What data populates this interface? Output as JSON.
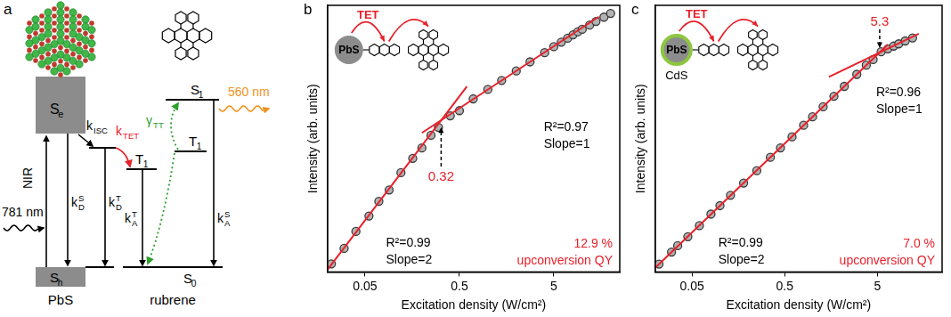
{
  "diagram": {
    "panel_label": "a",
    "nanocrystal": "PbS",
    "molecule": "rubrene",
    "excitation": "NIR",
    "excitation_wavelength": "781 nm",
    "emission_wavelength": "560 nm",
    "levels": {
      "pbs_excited": {
        "base": "S",
        "sub": "e"
      },
      "pbs_ground": {
        "base": "S",
        "sub": "h"
      },
      "rubrene_singlet": {
        "base": "S",
        "sub": "1"
      },
      "rubrene_triplet": {
        "base": "T",
        "sub": "1"
      },
      "rubrene_ground": {
        "base": "S",
        "sub": "0"
      }
    },
    "rates": {
      "isc": {
        "base": "k",
        "sub": "ISC"
      },
      "tet": {
        "base": "k",
        "sub": "TET"
      },
      "pbs_singlet_decay": {
        "base": "k",
        "sub": "D",
        "sup": "S"
      },
      "pbs_triplet_decay": {
        "base": "k",
        "sub": "D",
        "sup": "T"
      },
      "rubrene_triplet_decay": {
        "base": "k",
        "sub": "A",
        "sup": "T"
      },
      "rubrene_singlet_decay": {
        "base": "k",
        "sub": "A",
        "sup": "S"
      },
      "tta": {
        "base": "γ",
        "sub": "TT"
      }
    }
  },
  "chart_data": [
    {
      "panel_label": "b",
      "type": "scatter",
      "x_label": "Excitation density (W/cm²)",
      "y_label": "Intensity (arb. units)",
      "log": true,
      "xlim": [
        0.02,
        25
      ],
      "xticks": [
        0.05,
        0.5,
        5
      ],
      "ylim": [
        1,
        20000
      ],
      "tick_labels": "x",
      "grid": false,
      "color": "#e8202a",
      "series": [
        {
          "type": "scatter",
          "marker": "circle",
          "color": "#3a3a3a",
          "x": [
            0.022,
            0.03,
            0.04,
            0.055,
            0.07,
            0.09,
            0.12,
            0.16,
            0.2,
            0.25,
            0.3,
            0.4,
            0.5,
            0.7,
            1,
            1.4,
            2,
            2.8,
            4,
            5,
            6,
            7,
            8,
            9,
            10,
            12,
            14,
            17,
            20
          ],
          "values": [
            1.35,
            2.4,
            4.5,
            8.0,
            13.8,
            21,
            40,
            68,
            100,
            160,
            215,
            330,
            400,
            620,
            880,
            1230,
            1750,
            2450,
            3450,
            4300,
            5100,
            5900,
            6700,
            7500,
            8200,
            9600,
            11000,
            12900,
            14800
          ]
        },
        {
          "type": "line",
          "line_style": "solid",
          "color": "#e8202a",
          "x": [
            0.02,
            0.6
          ],
          "values": [
            1.09,
            984
          ],
          "fit_labels": [
            "R²=0.99",
            "Slope=2"
          ]
        },
        {
          "type": "line",
          "line_style": "solid",
          "color": "#e8202a",
          "x": [
            0.2,
            15
          ],
          "values": [
            175,
            13125
          ],
          "fit_labels": [
            "R²=0.97",
            "Slope=1"
          ]
        }
      ],
      "threshold": 0.32,
      "upconversion_qy": "12.9 %",
      "qy_label": "upconversion QY",
      "inset": {
        "particle": "PbS",
        "transfer": "TET"
      }
    },
    {
      "panel_label": "c",
      "type": "scatter",
      "x_label": "Excitation density (W/cm²)",
      "y_label": "Intensity (arb. units)",
      "log": true,
      "xlim": [
        0.02,
        25
      ],
      "xticks": [
        0.05,
        0.5,
        5
      ],
      "ylim": [
        1,
        1000000
      ],
      "tick_labels": "x",
      "grid": false,
      "color": "#e8202a",
      "series": [
        {
          "type": "scatter",
          "marker": "circle",
          "color": "#3a3a3a",
          "x": [
            0.022,
            0.03,
            0.035,
            0.045,
            0.06,
            0.08,
            0.1,
            0.13,
            0.18,
            0.25,
            0.35,
            0.45,
            0.6,
            0.8,
            1,
            1.3,
            1.7,
            2.2,
            3,
            3.8,
            4.5,
            5.5,
            6.5,
            7.5,
            8.5,
            10,
            12
          ],
          "values": [
            1.5,
            2.8,
            3.9,
            6.2,
            11,
            20,
            31,
            53,
            100,
            190,
            380,
            620,
            1100,
            2000,
            3100,
            5200,
            9000,
            15000,
            28000,
            45000,
            60000,
            90000,
            105000,
            121000,
            136000,
            158000,
            185000
          ]
        },
        {
          "type": "line",
          "line_style": "solid",
          "color": "#e8202a",
          "x": [
            0.02,
            6.5
          ],
          "values": [
            1.24,
            131000
          ],
          "fit_labels": [
            "R²=0.99",
            "Slope=2"
          ]
        },
        {
          "type": "line",
          "line_style": "solid",
          "color": "#e8202a",
          "x": [
            1.5,
            14
          ],
          "values": [
            24600,
            230000
          ],
          "fit_labels": [
            "R²=0.96",
            "Slope=1"
          ]
        }
      ],
      "threshold": 5.3,
      "upconversion_qy": "7.0 %",
      "qy_label": "upconversion QY",
      "inset": {
        "particle": "PbS",
        "shell": "CdS",
        "transfer": "TET"
      }
    }
  ]
}
